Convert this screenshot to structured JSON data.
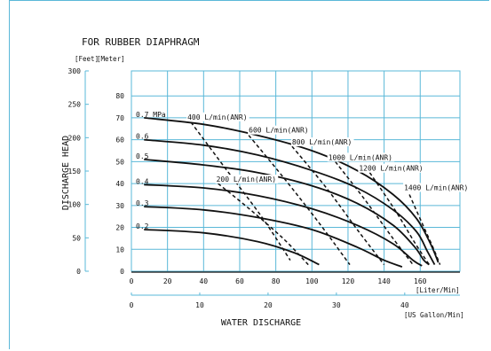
{
  "chart_data": {
    "type": "line",
    "title": "FOR RUBBER DIAPHRAGM",
    "ylabel": "DISCHARGE HEAD",
    "xlabel": "WATER DISCHARGE",
    "y_units": [
      "[Feet]",
      "[Meter]"
    ],
    "x_units": [
      "[Liter/Min]",
      "[US Gallon/Min]"
    ],
    "grid": true,
    "feet_axis": {
      "ticks": [
        0,
        50,
        100,
        150,
        200,
        250,
        300
      ],
      "ylim": [
        0,
        300
      ]
    },
    "meter_axis": {
      "ticks": [
        0,
        10,
        20,
        30,
        40,
        50,
        60,
        70,
        80
      ],
      "ylim": [
        0,
        91.4
      ]
    },
    "liter_axis": {
      "ticks": [
        0,
        20,
        40,
        60,
        80,
        100,
        120,
        140,
        160
      ],
      "xlim": [
        0,
        182
      ]
    },
    "gallon_axis": {
      "ticks": [
        0,
        10,
        20,
        30,
        40
      ]
    },
    "pressure_series": [
      {
        "name": "0.7 MPa",
        "x": [
          7,
          40,
          70,
          100,
          125,
          145,
          158,
          166,
          170
        ],
        "y": [
          70,
          67,
          62,
          55,
          46,
          35,
          24,
          12,
          4
        ]
      },
      {
        "name": "0.6",
        "x": [
          7,
          40,
          70,
          100,
          125,
          145,
          158,
          164,
          168
        ],
        "y": [
          60,
          57.5,
          53,
          46,
          38,
          28,
          18,
          9,
          3
        ]
      },
      {
        "name": "0.5",
        "x": [
          7,
          40,
          70,
          100,
          125,
          145,
          157,
          162,
          165
        ],
        "y": [
          51,
          48.5,
          45,
          39,
          31,
          21,
          11,
          5,
          3
        ]
      },
      {
        "name": "0.4",
        "x": [
          7,
          40,
          70,
          100,
          125,
          145,
          156,
          161
        ],
        "y": [
          39.5,
          38,
          34.5,
          28.5,
          21,
          12.5,
          5,
          2.5
        ]
      },
      {
        "name": "0.3",
        "x": [
          7,
          40,
          70,
          100,
          125,
          140,
          150
        ],
        "y": [
          29.5,
          28,
          24.5,
          19,
          11,
          5,
          2
        ]
      },
      {
        "name": "0.2",
        "x": [
          7,
          40,
          70,
          90,
          104
        ],
        "y": [
          19,
          17.5,
          13.5,
          8.5,
          3
        ]
      }
    ],
    "airflow_series": [
      {
        "name": "200 L/min(ANR)",
        "x": [
          48,
          66,
          84,
          98
        ],
        "y": [
          40,
          28,
          15,
          3
        ]
      },
      {
        "name": "400 L/min(ANR)",
        "x": [
          33,
          52,
          72,
          88
        ],
        "y": [
          68,
          47,
          25,
          5
        ]
      },
      {
        "name": "600 L/min(ANR)",
        "x": [
          65,
          84,
          104,
          121
        ],
        "y": [
          62,
          43,
          22,
          3
        ]
      },
      {
        "name": "800 L/min(ANR)",
        "x": [
          89,
          108,
          126,
          140
        ],
        "y": [
          57,
          38,
          18,
          3
        ]
      },
      {
        "name": "1000 L/min(ANR)",
        "x": [
          113,
          129,
          144,
          156
        ],
        "y": [
          50,
          33,
          16,
          3
        ]
      },
      {
        "name": "1200 L/min(ANR)",
        "x": [
          132,
          146,
          157,
          165
        ],
        "y": [
          45,
          28,
          13,
          3
        ]
      },
      {
        "name": "1400 L/min(ANR)",
        "x": [
          154,
          161,
          167,
          171
        ],
        "y": [
          35,
          22,
          11,
          3
        ]
      }
    ],
    "pressure_labels": [
      "0.7 MPa",
      "0.6",
      "0.5",
      "0.4",
      "0.3",
      "0.2"
    ]
  }
}
